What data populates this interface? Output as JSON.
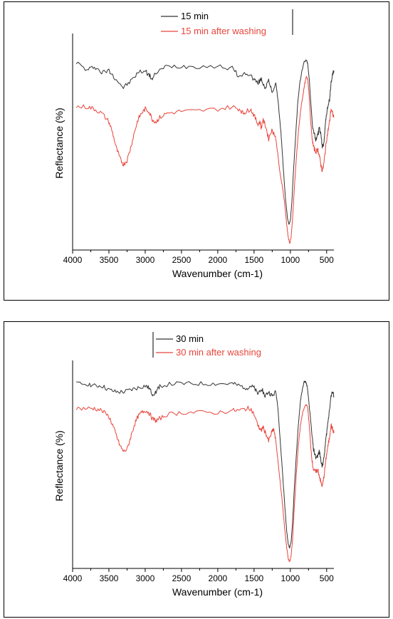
{
  "chart_data": [
    {
      "type": "line",
      "xlabel": "Wavenumber (cm-1)",
      "ylabel": "Reflectance (%)",
      "xlim": [
        4000,
        400
      ],
      "x_reversed": true,
      "x_ticks": [
        4000,
        3500,
        3000,
        2500,
        2000,
        1500,
        1000,
        500
      ],
      "y_ticks_shown": false,
      "grid": false,
      "legend_position": "top-center",
      "series": [
        {
          "name": "15 min",
          "color": "#333333",
          "points": [
            [
              3950,
              0.88
            ],
            [
              3800,
              0.84
            ],
            [
              3700,
              0.86
            ],
            [
              3600,
              0.83
            ],
            [
              3500,
              0.84
            ],
            [
              3400,
              0.8
            ],
            [
              3300,
              0.76
            ],
            [
              3200,
              0.79
            ],
            [
              3100,
              0.83
            ],
            [
              3000,
              0.84
            ],
            [
              2950,
              0.82
            ],
            [
              2900,
              0.8
            ],
            [
              2850,
              0.83
            ],
            [
              2700,
              0.86
            ],
            [
              2500,
              0.86
            ],
            [
              2300,
              0.86
            ],
            [
              2000,
              0.86
            ],
            [
              1800,
              0.85
            ],
            [
              1700,
              0.81
            ],
            [
              1600,
              0.83
            ],
            [
              1500,
              0.8
            ],
            [
              1450,
              0.78
            ],
            [
              1400,
              0.8
            ],
            [
              1350,
              0.76
            ],
            [
              1300,
              0.79
            ],
            [
              1250,
              0.74
            ],
            [
              1200,
              0.78
            ],
            [
              1170,
              0.7
            ],
            [
              1130,
              0.55
            ],
            [
              1100,
              0.4
            ],
            [
              1070,
              0.25
            ],
            [
              1040,
              0.15
            ],
            [
              1020,
              0.12
            ],
            [
              1000,
              0.14
            ],
            [
              980,
              0.22
            ],
            [
              960,
              0.35
            ],
            [
              930,
              0.52
            ],
            [
              900,
              0.68
            ],
            [
              870,
              0.78
            ],
            [
              840,
              0.84
            ],
            [
              810,
              0.88
            ],
            [
              780,
              0.89
            ],
            [
              760,
              0.87
            ],
            [
              740,
              0.8
            ],
            [
              720,
              0.7
            ],
            [
              700,
              0.6
            ],
            [
              680,
              0.55
            ],
            [
              650,
              0.52
            ],
            [
              620,
              0.54
            ],
            [
              600,
              0.57
            ],
            [
              580,
              0.54
            ],
            [
              560,
              0.48
            ],
            [
              540,
              0.5
            ],
            [
              520,
              0.58
            ],
            [
              500,
              0.64
            ],
            [
              480,
              0.68
            ],
            [
              460,
              0.7
            ],
            [
              440,
              0.78
            ],
            [
              420,
              0.82
            ],
            [
              400,
              0.84
            ]
          ]
        },
        {
          "name": "15 min after washing",
          "color": "#e8453c",
          "points": [
            [
              3950,
              0.67
            ],
            [
              3800,
              0.67
            ],
            [
              3700,
              0.66
            ],
            [
              3600,
              0.64
            ],
            [
              3500,
              0.6
            ],
            [
              3450,
              0.55
            ],
            [
              3400,
              0.48
            ],
            [
              3350,
              0.43
            ],
            [
              3300,
              0.4
            ],
            [
              3250,
              0.42
            ],
            [
              3200,
              0.48
            ],
            [
              3150,
              0.55
            ],
            [
              3100,
              0.61
            ],
            [
              3050,
              0.64
            ],
            [
              3000,
              0.66
            ],
            [
              2950,
              0.65
            ],
            [
              2900,
              0.61
            ],
            [
              2850,
              0.6
            ],
            [
              2800,
              0.62
            ],
            [
              2700,
              0.64
            ],
            [
              2500,
              0.65
            ],
            [
              2300,
              0.65
            ],
            [
              2000,
              0.66
            ],
            [
              1800,
              0.67
            ],
            [
              1700,
              0.66
            ],
            [
              1650,
              0.64
            ],
            [
              1600,
              0.65
            ],
            [
              1550,
              0.66
            ],
            [
              1500,
              0.63
            ],
            [
              1450,
              0.59
            ],
            [
              1420,
              0.6
            ],
            [
              1400,
              0.57
            ],
            [
              1380,
              0.61
            ],
            [
              1340,
              0.58
            ],
            [
              1300,
              0.52
            ],
            [
              1260,
              0.56
            ],
            [
              1230,
              0.55
            ],
            [
              1200,
              0.52
            ],
            [
              1170,
              0.44
            ],
            [
              1140,
              0.35
            ],
            [
              1110,
              0.3
            ],
            [
              1080,
              0.22
            ],
            [
              1050,
              0.12
            ],
            [
              1030,
              0.06
            ],
            [
              1010,
              0.03
            ],
            [
              990,
              0.06
            ],
            [
              970,
              0.14
            ],
            [
              950,
              0.26
            ],
            [
              920,
              0.42
            ],
            [
              890,
              0.55
            ],
            [
              860,
              0.65
            ],
            [
              830,
              0.72
            ],
            [
              800,
              0.78
            ],
            [
              780,
              0.81
            ],
            [
              760,
              0.8
            ],
            [
              740,
              0.72
            ],
            [
              720,
              0.6
            ],
            [
              700,
              0.52
            ],
            [
              680,
              0.48
            ],
            [
              650,
              0.46
            ],
            [
              620,
              0.47
            ],
            [
              600,
              0.44
            ],
            [
              580,
              0.4
            ],
            [
              560,
              0.37
            ],
            [
              540,
              0.4
            ],
            [
              520,
              0.46
            ],
            [
              500,
              0.52
            ],
            [
              480,
              0.56
            ],
            [
              460,
              0.6
            ],
            [
              440,
              0.66
            ],
            [
              420,
              0.64
            ],
            [
              400,
              0.62
            ]
          ]
        }
      ]
    },
    {
      "type": "line",
      "xlabel": "Wavenumber (cm-1)",
      "ylabel": "Reflectance (%)",
      "xlim": [
        4000,
        400
      ],
      "x_reversed": true,
      "x_ticks": [
        4000,
        3500,
        3000,
        2500,
        2000,
        1500,
        1000,
        500
      ],
      "y_ticks_shown": false,
      "grid": false,
      "legend_position": "top-center",
      "series": [
        {
          "name": "30 min",
          "color": "#333333",
          "points": [
            [
              3950,
              0.9
            ],
            [
              3800,
              0.9
            ],
            [
              3700,
              0.89
            ],
            [
              3600,
              0.89
            ],
            [
              3500,
              0.87
            ],
            [
              3400,
              0.86
            ],
            [
              3300,
              0.86
            ],
            [
              3200,
              0.87
            ],
            [
              3100,
              0.88
            ],
            [
              3000,
              0.89
            ],
            [
              2950,
              0.88
            ],
            [
              2900,
              0.85
            ],
            [
              2850,
              0.86
            ],
            [
              2800,
              0.89
            ],
            [
              2600,
              0.9
            ],
            [
              2400,
              0.9
            ],
            [
              2200,
              0.9
            ],
            [
              2000,
              0.9
            ],
            [
              1800,
              0.9
            ],
            [
              1700,
              0.89
            ],
            [
              1600,
              0.88
            ],
            [
              1550,
              0.89
            ],
            [
              1500,
              0.88
            ],
            [
              1450,
              0.85
            ],
            [
              1400,
              0.88
            ],
            [
              1350,
              0.84
            ],
            [
              1300,
              0.86
            ],
            [
              1250,
              0.84
            ],
            [
              1200,
              0.86
            ],
            [
              1170,
              0.78
            ],
            [
              1140,
              0.62
            ],
            [
              1110,
              0.48
            ],
            [
              1080,
              0.32
            ],
            [
              1050,
              0.18
            ],
            [
              1030,
              0.12
            ],
            [
              1010,
              0.1
            ],
            [
              990,
              0.13
            ],
            [
              970,
              0.22
            ],
            [
              950,
              0.36
            ],
            [
              920,
              0.54
            ],
            [
              890,
              0.7
            ],
            [
              860,
              0.82
            ],
            [
              830,
              0.88
            ],
            [
              810,
              0.91
            ],
            [
              790,
              0.91
            ],
            [
              770,
              0.89
            ],
            [
              750,
              0.83
            ],
            [
              720,
              0.72
            ],
            [
              700,
              0.64
            ],
            [
              680,
              0.58
            ],
            [
              650,
              0.54
            ],
            [
              620,
              0.55
            ],
            [
              600,
              0.57
            ],
            [
              580,
              0.53
            ],
            [
              560,
              0.5
            ],
            [
              540,
              0.53
            ],
            [
              520,
              0.6
            ],
            [
              500,
              0.66
            ],
            [
              480,
              0.72
            ],
            [
              460,
              0.78
            ],
            [
              440,
              0.84
            ],
            [
              420,
              0.86
            ],
            [
              400,
              0.84
            ]
          ]
        },
        {
          "name": "30 min after washing",
          "color": "#e8453c",
          "points": [
            [
              3950,
              0.78
            ],
            [
              3800,
              0.78
            ],
            [
              3700,
              0.78
            ],
            [
              3600,
              0.77
            ],
            [
              3500,
              0.74
            ],
            [
              3450,
              0.7
            ],
            [
              3400,
              0.65
            ],
            [
              3350,
              0.6
            ],
            [
              3300,
              0.57
            ],
            [
              3250,
              0.58
            ],
            [
              3200,
              0.64
            ],
            [
              3150,
              0.7
            ],
            [
              3100,
              0.74
            ],
            [
              3050,
              0.76
            ],
            [
              3000,
              0.77
            ],
            [
              2950,
              0.76
            ],
            [
              2900,
              0.73
            ],
            [
              2850,
              0.72
            ],
            [
              2800,
              0.73
            ],
            [
              2700,
              0.75
            ],
            [
              2500,
              0.76
            ],
            [
              2300,
              0.76
            ],
            [
              2000,
              0.76
            ],
            [
              1800,
              0.77
            ],
            [
              1700,
              0.77
            ],
            [
              1600,
              0.78
            ],
            [
              1550,
              0.78
            ],
            [
              1500,
              0.75
            ],
            [
              1450,
              0.7
            ],
            [
              1420,
              0.68
            ],
            [
              1400,
              0.67
            ],
            [
              1380,
              0.69
            ],
            [
              1340,
              0.66
            ],
            [
              1300,
              0.62
            ],
            [
              1260,
              0.66
            ],
            [
              1230,
              0.68
            ],
            [
              1200,
              0.62
            ],
            [
              1170,
              0.52
            ],
            [
              1140,
              0.42
            ],
            [
              1110,
              0.32
            ],
            [
              1080,
              0.2
            ],
            [
              1050,
              0.1
            ],
            [
              1030,
              0.05
            ],
            [
              1010,
              0.03
            ],
            [
              990,
              0.06
            ],
            [
              970,
              0.14
            ],
            [
              950,
              0.27
            ],
            [
              920,
              0.45
            ],
            [
              890,
              0.6
            ],
            [
              860,
              0.7
            ],
            [
              830,
              0.76
            ],
            [
              800,
              0.79
            ],
            [
              780,
              0.8
            ],
            [
              760,
              0.78
            ],
            [
              740,
              0.7
            ],
            [
              720,
              0.6
            ],
            [
              700,
              0.52
            ],
            [
              680,
              0.48
            ],
            [
              650,
              0.47
            ],
            [
              620,
              0.48
            ],
            [
              600,
              0.45
            ],
            [
              580,
              0.42
            ],
            [
              560,
              0.4
            ],
            [
              540,
              0.44
            ],
            [
              520,
              0.5
            ],
            [
              500,
              0.56
            ],
            [
              480,
              0.6
            ],
            [
              460,
              0.64
            ],
            [
              440,
              0.7
            ],
            [
              420,
              0.68
            ],
            [
              400,
              0.66
            ]
          ]
        }
      ]
    }
  ]
}
